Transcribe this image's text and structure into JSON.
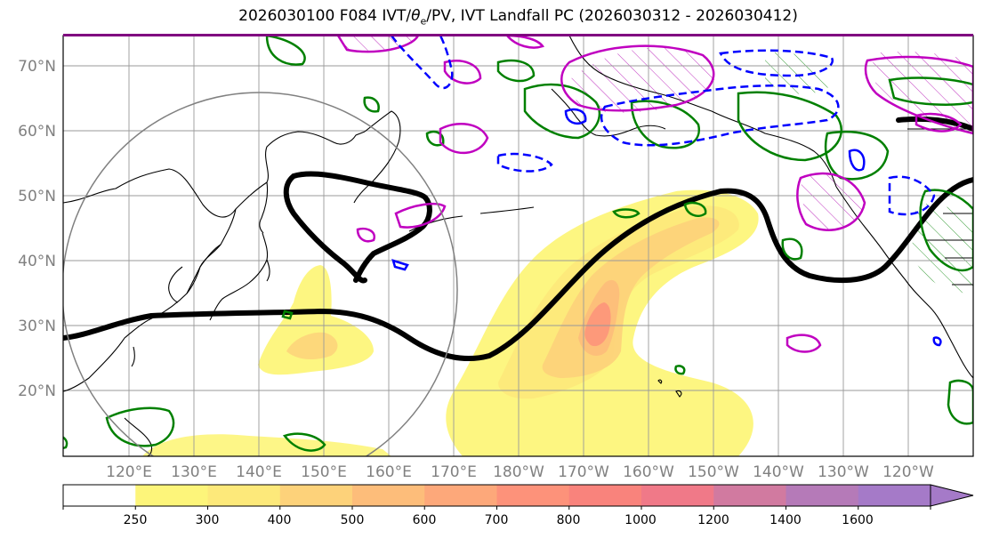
{
  "title": {
    "prefix": "2026030100 F084 IVT/",
    "theta": "θ",
    "theta_sub": "e",
    "suffix": "/PV, IVT Landfall PC (2026030312 - 2026030412)"
  },
  "lat_labels": [
    "70°N",
    "60°N",
    "50°N",
    "40°N",
    "30°N",
    "20°N"
  ],
  "lon_labels": [
    "120°E",
    "130°E",
    "140°E",
    "150°E",
    "160°E",
    "170°E",
    "180°W",
    "170°W",
    "160°W",
    "150°W",
    "140°W",
    "130°W",
    "120°W"
  ],
  "colorbar": {
    "levels": [
      "250",
      "300",
      "400",
      "500",
      "600",
      "700",
      "800",
      "1000",
      "1200",
      "1400",
      "1600"
    ],
    "colors": [
      "#ffffff",
      "#fdf57a",
      "#fde97a",
      "#fdd27a",
      "#fdbd7a",
      "#fda87a",
      "#fd927a",
      "#f9837c",
      "#f07988",
      "#d17aa0",
      "#b57ab8",
      "#a57ac8"
    ]
  },
  "legend_colors": {
    "ivt_fill": "#fdf57a",
    "jet_contour": "#000000",
    "pv_contour": "#008000",
    "theta_contour_pos": "#c000c0",
    "theta_contour_neg": "#0000ff"
  }
}
